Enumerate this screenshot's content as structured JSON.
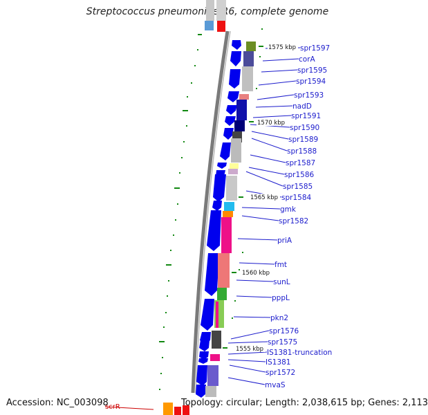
{
  "title": "Streptococcus pneumoniae R6, complete genome",
  "footer": {
    "accession": "Accession: NC_003098",
    "topology": "Topology: circular; Length: 2,038,615 bp; Genes: 2,113"
  },
  "ticks": [
    "1575 kbp",
    "1570 kbp",
    "1565 kbp",
    "1560 kbp",
    "1555 kbp"
  ],
  "genes": [
    "spr1597",
    "corA",
    "spr1595",
    "spr1594",
    "spr1593",
    "nadD",
    "spr1591",
    "spr1590",
    "spr1589",
    "spr1588",
    "spr1587",
    "spr1586",
    "spr1585",
    "spr1584",
    "gmk",
    "spr1582",
    "priA",
    "fmt",
    "sunL",
    "pppL",
    "pkn2",
    "spr1576",
    "spr1575",
    "IS1381-truncation",
    "IS1381",
    "spr1572",
    "mvaS"
  ],
  "extra_gene": "scrR",
  "colors": {
    "arrow": "#0000ee",
    "label": "#1a1acc",
    "tick": "#118811",
    "backbone": "#808080",
    "scrR": "#cc0000"
  }
}
